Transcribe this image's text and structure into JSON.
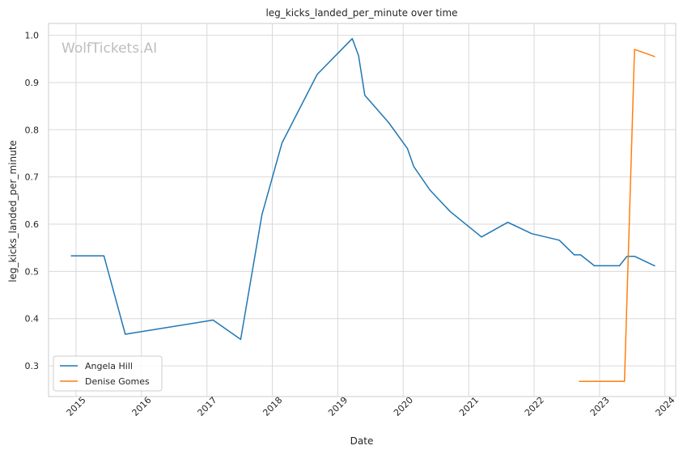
{
  "watermark": "WolfTickets.AI",
  "chart_data": {
    "type": "line",
    "title": "leg_kicks_landed_per_minute over time",
    "xlabel": "Date",
    "ylabel": "leg_kicks_landed_per_minute",
    "x_ticks": [
      "2015",
      "2016",
      "2017",
      "2018",
      "2019",
      "2020",
      "2021",
      "2022",
      "2023",
      "2024"
    ],
    "y_ticks": [
      "0.3",
      "0.4",
      "0.5",
      "0.6",
      "0.7",
      "0.8",
      "0.9",
      "1.0"
    ],
    "xlim": [
      "2014-08-01",
      "2024-03-01"
    ],
    "ylim": [
      0.235,
      1.025
    ],
    "grid": true,
    "legend_position": "bottom-left",
    "series": [
      {
        "name": "Angela Hill",
        "color": "#1f77b4",
        "points": [
          [
            "2014-12-06",
            0.533
          ],
          [
            "2015-06-06",
            0.533
          ],
          [
            "2015-10-03",
            0.367
          ],
          [
            "2017-02-04",
            0.397
          ],
          [
            "2017-07-08",
            0.356
          ],
          [
            "2017-11-04",
            0.62
          ],
          [
            "2018-02-24",
            0.772
          ],
          [
            "2018-09-08",
            0.917
          ],
          [
            "2019-03-23",
            0.993
          ],
          [
            "2019-04-27",
            0.957
          ],
          [
            "2019-06-01",
            0.873
          ],
          [
            "2019-10-12",
            0.815
          ],
          [
            "2020-01-25",
            0.76
          ],
          [
            "2020-02-29",
            0.722
          ],
          [
            "2020-05-30",
            0.672
          ],
          [
            "2020-09-19",
            0.627
          ],
          [
            "2021-03-13",
            0.573
          ],
          [
            "2021-08-07",
            0.604
          ],
          [
            "2021-12-18",
            0.58
          ],
          [
            "2022-05-21",
            0.566
          ],
          [
            "2022-08-13",
            0.535
          ],
          [
            "2022-09-17",
            0.535
          ],
          [
            "2022-12-03",
            0.512
          ],
          [
            "2023-04-22",
            0.512
          ],
          [
            "2023-06-03",
            0.532
          ],
          [
            "2023-07-15",
            0.532
          ],
          [
            "2023-11-04",
            0.512
          ]
        ]
      },
      {
        "name": "Denise Gomes",
        "color": "#ff7f0e",
        "points": [
          [
            "2022-09-10",
            0.267
          ],
          [
            "2023-05-20",
            0.267
          ],
          [
            "2023-07-15",
            0.97
          ],
          [
            "2023-11-04",
            0.955
          ]
        ]
      }
    ]
  }
}
